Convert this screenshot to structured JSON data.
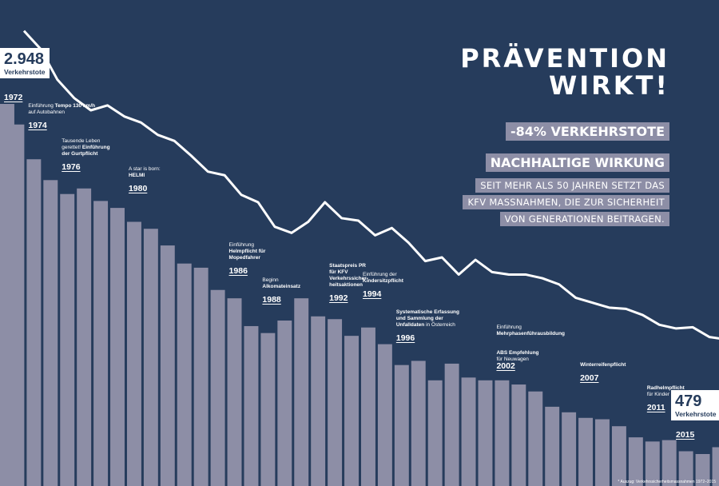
{
  "headline": {
    "line1": "PRÄVENTION",
    "line2": "WIRKT!"
  },
  "tag1": "-84% VERKEHRSTOTE",
  "tag2": "NACHHALTIGE WIRKUNG",
  "subtext": [
    "SEIT MEHR ALS 50 JAHREN SETZT DAS",
    "KFV MASSNAHMEN, DIE ZUR SICHERHEIT",
    "VON GENERATIONEN BEITRAGEN."
  ],
  "start_value": {
    "number": "2.948",
    "label": "Verkehrstote",
    "year": "1972"
  },
  "end_value": {
    "number": "479",
    "label": "Verkehrstote",
    "year": "2015"
  },
  "milestones": [
    {
      "year": "1974",
      "lines": [
        "Einführung <b>Tempo 130 km/h</b>",
        "auf Autobahnen"
      ]
    },
    {
      "year": "1976",
      "lines": [
        "Tausende Leben",
        "gerettet! <b>Einführung</b>",
        "<b>der Gurtpflicht</b>"
      ]
    },
    {
      "year": "1980",
      "lines": [
        "A star is born:",
        "<b>HELMI</b>"
      ]
    },
    {
      "year": "1986",
      "lines": [
        "Einführung",
        "<b>Helmpflicht für</b>",
        "<b>Mopedfahrer</b>"
      ]
    },
    {
      "year": "1988",
      "lines": [
        "Beginn",
        "<b>Alkomateinsatz</b>"
      ]
    },
    {
      "year": "1992",
      "lines": [
        "<b>Staatspreis PR</b>",
        "<b>für KFV</b>",
        "<b>Verkehrssicher-</b>",
        "<b>heitsaktionen</b>"
      ]
    },
    {
      "year": "1994",
      "lines": [
        "Einführung der",
        "<b>Kindersitzpflicht</b>"
      ]
    },
    {
      "year": "1996",
      "lines": [
        "<b>Systematische Erfassung</b>",
        "<b>und Sammlung der</b>",
        "<b>Unfalldaten</b> in Österreich"
      ]
    },
    {
      "year": "2002",
      "lines": [
        "Einführung",
        "<b>Mehrphasenführausbildung</b>",
        "",
        "<b>ABS Empfehlung</b>",
        "für Neuwagen"
      ]
    },
    {
      "year": "2007",
      "lines": [
        "<b>Winterreifenpflicht</b>"
      ]
    },
    {
      "year": "2011",
      "lines": [
        "<b>Radhelmpflicht</b>",
        "für Kinder"
      ]
    }
  ],
  "footnote": "* Auszug: Verkehrssicherheitsmassnahmen 1972–2015",
  "colors": {
    "background": "#263c5c",
    "area": "#8d8ea6",
    "line": "#ffffff",
    "tag": "#8d8ea6"
  },
  "chart_data": {
    "type": "area",
    "x": [
      1972,
      1973,
      1974,
      1975,
      1976,
      1977,
      1978,
      1979,
      1980,
      1981,
      1982,
      1983,
      1984,
      1985,
      1986,
      1987,
      1988,
      1989,
      1990,
      1991,
      1992,
      1993,
      1994,
      1995,
      1996,
      1997,
      1998,
      1999,
      2000,
      2001,
      2002,
      2003,
      2004,
      2005,
      2006,
      2007,
      2008,
      2009,
      2010,
      2011,
      2012,
      2013,
      2014,
      2015
    ],
    "values": [
      2948,
      2800,
      2550,
      2400,
      2300,
      2340,
      2250,
      2200,
      2100,
      2050,
      1930,
      1800,
      1770,
      1610,
      1550,
      1350,
      1300,
      1390,
      1550,
      1420,
      1400,
      1280,
      1340,
      1220,
      1070,
      1100,
      960,
      1080,
      980,
      960,
      960,
      930,
      880,
      770,
      730,
      690,
      680,
      630,
      550,
      520,
      530,
      450,
      430,
      479
    ],
    "title": "",
    "xlabel": "",
    "ylabel": "",
    "ylim": [
      0,
      3200
    ],
    "grid": false,
    "legend": "none"
  }
}
